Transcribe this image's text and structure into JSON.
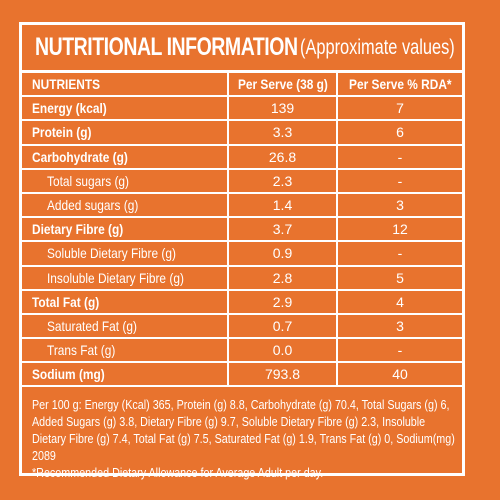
{
  "title": {
    "main": "NUTRITIONAL INFORMATION",
    "sub": "(Approximate values)"
  },
  "table": {
    "headers": [
      "NUTRIENTS",
      "Per Serve (38 g)",
      "Per Serve % RDA*"
    ],
    "rows": [
      {
        "name": "Energy (kcal)",
        "per_serve": "139",
        "rda": "7"
      },
      {
        "name": "Protein (g)",
        "per_serve": "3.3",
        "rda": "6"
      },
      {
        "name": "Carbohydrate (g)",
        "per_serve": "26.8",
        "rda": "-"
      },
      {
        "name": "Total sugars (g)",
        "per_serve": "2.3",
        "rda": "-"
      },
      {
        "name": "Added sugars (g)",
        "per_serve": "1.4",
        "rda": "3"
      },
      {
        "name": "Dietary Fibre (g)",
        "per_serve": "3.7",
        "rda": "12"
      },
      {
        "name": "Soluble Dietary Fibre (g)",
        "per_serve": "0.9",
        "rda": "-"
      },
      {
        "name": "Insoluble Dietary Fibre (g)",
        "per_serve": "2.8",
        "rda": "5"
      },
      {
        "name": "Total Fat (g)",
        "per_serve": "2.9",
        "rda": "4"
      },
      {
        "name": "Saturated Fat (g)",
        "per_serve": "0.7",
        "rda": "3"
      },
      {
        "name": "Trans Fat (g)",
        "per_serve": "0.0",
        "rda": "-"
      },
      {
        "name": "Sodium (mg)",
        "per_serve": "793.8",
        "rda": "40"
      }
    ]
  },
  "footnote": {
    "per100": "Per 100 g: Energy (Kcal) 365, Protein (g) 8.8, Carbohydrate (g) 70.4, Total Sugars (g) 6, Added Sugars (g) 3.8, Dietary Fibre (g) 9.7, Soluble Dietary Fibre (g) 2.3, Insoluble Dietary Fibre (g) 7.4, Total Fat (g) 7.5, Saturated Fat (g) 1.9, Trans Fat (g) 0, Sodium(mg) 2089",
    "rda_note": "*Recommended Dietary Allowance for Average Adult per day."
  },
  "colors": {
    "background": "#e8732e",
    "foreground": "#ffffff"
  }
}
